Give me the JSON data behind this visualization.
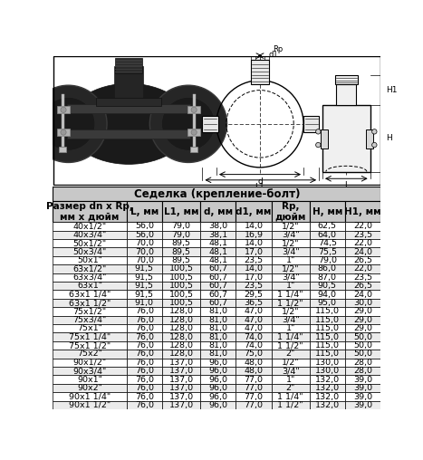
{
  "title_top": "Седелка (крепление-болт)",
  "headers": [
    "Размер dn x Rp,\nмм х дюйм",
    "L, мм",
    "L1, мм",
    "d, мм",
    "d1, мм",
    "Rp,\nдюйм",
    "H, мм",
    "H1, мм"
  ],
  "rows": [
    [
      "40х1/2\"",
      "56,0",
      "79,0",
      "38,0",
      "14,0",
      "1/2\"",
      "62,5",
      "22,0"
    ],
    [
      "40х3/4\"",
      "56,0",
      "79,0",
      "38,1",
      "16,9",
      "3/4\"",
      "64,0",
      "23,5"
    ],
    [
      "50х1/2\"",
      "70,0",
      "89,5",
      "48,1",
      "14,0",
      "1/2\"",
      "74,5",
      "22,0"
    ],
    [
      "50х3/4\"",
      "70,0",
      "89,5",
      "48,1",
      "17,0",
      "3/4\"",
      "75,5",
      "24,0"
    ],
    [
      "50х1\"",
      "70,0",
      "89,5",
      "48,1",
      "23,5",
      "1\"",
      "79,0",
      "26,5"
    ],
    [
      "63х1/2\"",
      "91,5",
      "100,5",
      "60,7",
      "14,0",
      "1/2\"",
      "86,0",
      "22,0"
    ],
    [
      "63х3/4\"",
      "91,5",
      "100,5",
      "60,7",
      "17,0",
      "3/4\"",
      "87,0",
      "23,5"
    ],
    [
      "63х1\"",
      "91,5",
      "100,5",
      "60,7",
      "23,5",
      "1\"",
      "90,5",
      "26,5"
    ],
    [
      "63х1 1/4\"",
      "91,5",
      "100,5",
      "60,7",
      "29,5",
      "1 1/4\"",
      "94,0",
      "24,0"
    ],
    [
      "63х1 1/2\"",
      "91,0",
      "100,5",
      "60,7",
      "36,5",
      "1 1/2\"",
      "95,0",
      "30,0"
    ],
    [
      "75х1/2\"",
      "76,0",
      "128,0",
      "81,0",
      "47,0",
      "1/2\"",
      "115,0",
      "29,0"
    ],
    [
      "75х3/4\"",
      "76,0",
      "128,0",
      "81,0",
      "47,0",
      "3/4\"",
      "115,0",
      "29,0"
    ],
    [
      "75х1\"",
      "76,0",
      "128,0",
      "81,0",
      "47,0",
      "1\"",
      "115,0",
      "29,0"
    ],
    [
      "75х1 1/4\"",
      "76,0",
      "128,0",
      "81,0",
      "74,0",
      "1 1/4\"",
      "115,0",
      "50,0"
    ],
    [
      "75х1 1/2\"",
      "76,0",
      "128,0",
      "81,0",
      "74,0",
      "1 1/2\"",
      "115,0",
      "50,0"
    ],
    [
      "75х2\"",
      "76,0",
      "128,0",
      "81,0",
      "75,0",
      "2\"",
      "115,0",
      "50,0"
    ],
    [
      "90х1/2\"",
      "76,0",
      "137,0",
      "96,0",
      "48,0",
      "1/2\"",
      "130,0",
      "28,0"
    ],
    [
      "90х3/4\"",
      "76,0",
      "137,0",
      "96,0",
      "48,0",
      "3/4\"",
      "130,0",
      "28,0"
    ],
    [
      "90х1\"",
      "76,0",
      "137,0",
      "96,0",
      "77,0",
      "1\"",
      "132,0",
      "39,0"
    ],
    [
      "90х2\"",
      "76,0",
      "137,0",
      "96,0",
      "77,0",
      "2\"",
      "132,0",
      "39,0"
    ],
    [
      "90х1 1/4\"",
      "76,0",
      "137,0",
      "96,0",
      "77,0",
      "1 1/4\"",
      "132,0",
      "39,0"
    ],
    [
      "90х1 1/2\"",
      "76,0",
      "137,0",
      "96,0",
      "77,0",
      "1 1/2\"",
      "132,0",
      "39,0"
    ]
  ],
  "col_widths": [
    1.55,
    0.75,
    0.8,
    0.75,
    0.75,
    0.8,
    0.75,
    0.75
  ],
  "header_bg": "#c8c8c8",
  "alt_row_bg": "#ebebeb",
  "white_row_bg": "#ffffff",
  "border_color": "#000000",
  "text_color": "#000000",
  "table_fontsize": 6.8,
  "header_fontsize": 7.5,
  "title_fontsize": 8.5
}
